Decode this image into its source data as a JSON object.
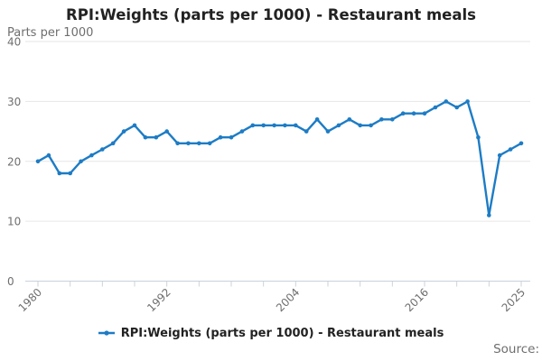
{
  "page": {
    "title": "RPI:Weights (parts per 1000) - Restaurant meals",
    "subtitle": "Parts per 1000",
    "source_label": "Source:"
  },
  "legend": {
    "position": "bottom",
    "items": [
      {
        "label": "RPI:Weights (parts per 1000) - Restaurant meals",
        "marker": "line-dot",
        "color": "#1d7cc5"
      }
    ]
  },
  "colors": {
    "series_line": "#1d7cc5",
    "grid_line": "#e6e6e6",
    "axis_line": "#c9d2dc",
    "tick_mark": "#c9d2dc",
    "text_muted": "#6e6e6e",
    "text_strong": "#222222",
    "background": "#ffffff"
  },
  "chart_data": {
    "type": "line",
    "title": "RPI:Weights (parts per 1000) - Restaurant meals",
    "subtitle": "Parts per 1000",
    "xlabel": "",
    "ylabel": "Parts per 1000",
    "ylim": [
      0,
      40
    ],
    "yticks": [
      0,
      10,
      20,
      30,
      40
    ],
    "xticks": [
      1980,
      1983,
      1986,
      1989,
      1992,
      1995,
      1998,
      2001,
      2004,
      2007,
      2010,
      2013,
      2016,
      2019,
      2022,
      2025
    ],
    "xtick_labels_shown": [
      1980,
      1992,
      2004,
      2016,
      2025
    ],
    "grid": "horizontal",
    "legend_position": "bottom",
    "marker": "circle",
    "x": [
      1980,
      1981,
      1982,
      1983,
      1984,
      1985,
      1986,
      1987,
      1988,
      1989,
      1990,
      1991,
      1992,
      1993,
      1994,
      1995,
      1996,
      1997,
      1998,
      1999,
      2000,
      2001,
      2002,
      2003,
      2004,
      2005,
      2006,
      2007,
      2008,
      2009,
      2010,
      2011,
      2012,
      2013,
      2014,
      2015,
      2016,
      2017,
      2018,
      2019,
      2020,
      2021,
      2022,
      2023,
      2024,
      2025
    ],
    "series": [
      {
        "name": "RPI:Weights (parts per 1000) - Restaurant meals",
        "color": "#1d7cc5",
        "values": [
          20,
          21,
          18,
          18,
          20,
          21,
          22,
          23,
          25,
          26,
          24,
          24,
          25,
          23,
          23,
          23,
          23,
          24,
          24,
          25,
          26,
          26,
          26,
          26,
          26,
          25,
          27,
          25,
          26,
          27,
          26,
          26,
          27,
          27,
          28,
          28,
          28,
          29,
          30,
          29,
          30,
          24,
          11,
          21,
          22,
          23
        ]
      }
    ]
  }
}
